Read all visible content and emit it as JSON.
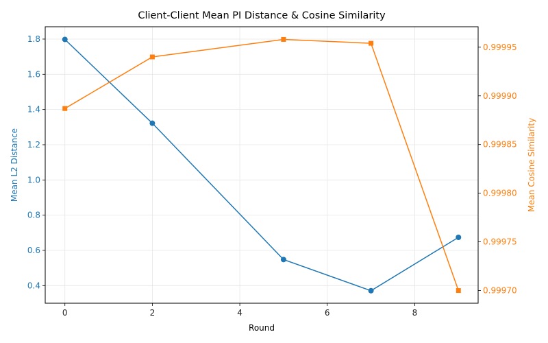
{
  "chart_data": {
    "type": "line",
    "title": "Client-Client Mean PI Distance & Cosine Similarity",
    "xlabel": "Round",
    "xlim": [
      -0.45,
      9.45
    ],
    "xticks": [
      0,
      2,
      4,
      6,
      8
    ],
    "x": [
      0,
      2,
      5,
      7,
      9
    ],
    "grid": true,
    "series": [
      {
        "axis": "left",
        "marker": "circle",
        "color": "#1f77b4",
        "values": [
          1.798,
          1.322,
          0.548,
          0.371,
          0.674
        ]
      },
      {
        "axis": "right",
        "marker": "square",
        "color": "#ff7f0e",
        "values": [
          0.999887,
          0.99994,
          0.999958,
          0.999954,
          0.9997
        ]
      }
    ],
    "y_left": {
      "label": "Mean L2 Distance",
      "color": "#1f77b4",
      "lim": [
        0.3,
        1.87
      ],
      "ticks": [
        0.4,
        0.6,
        0.8,
        1.0,
        1.2,
        1.4,
        1.6,
        1.8
      ],
      "tick_labels": [
        "0.4",
        "0.6",
        "0.8",
        "1.0",
        "1.2",
        "1.4",
        "1.6",
        "1.8"
      ]
    },
    "y_right": {
      "label": "Mean Cosine Similarity",
      "color": "#ff7f0e",
      "lim": [
        0.999687,
        0.999971
      ],
      "ticks": [
        0.9997,
        0.99975,
        0.9998,
        0.99985,
        0.9999,
        0.99995
      ],
      "tick_labels": [
        "0.99970",
        "0.99975",
        "0.99980",
        "0.99985",
        "0.99990",
        "0.99995"
      ]
    }
  }
}
